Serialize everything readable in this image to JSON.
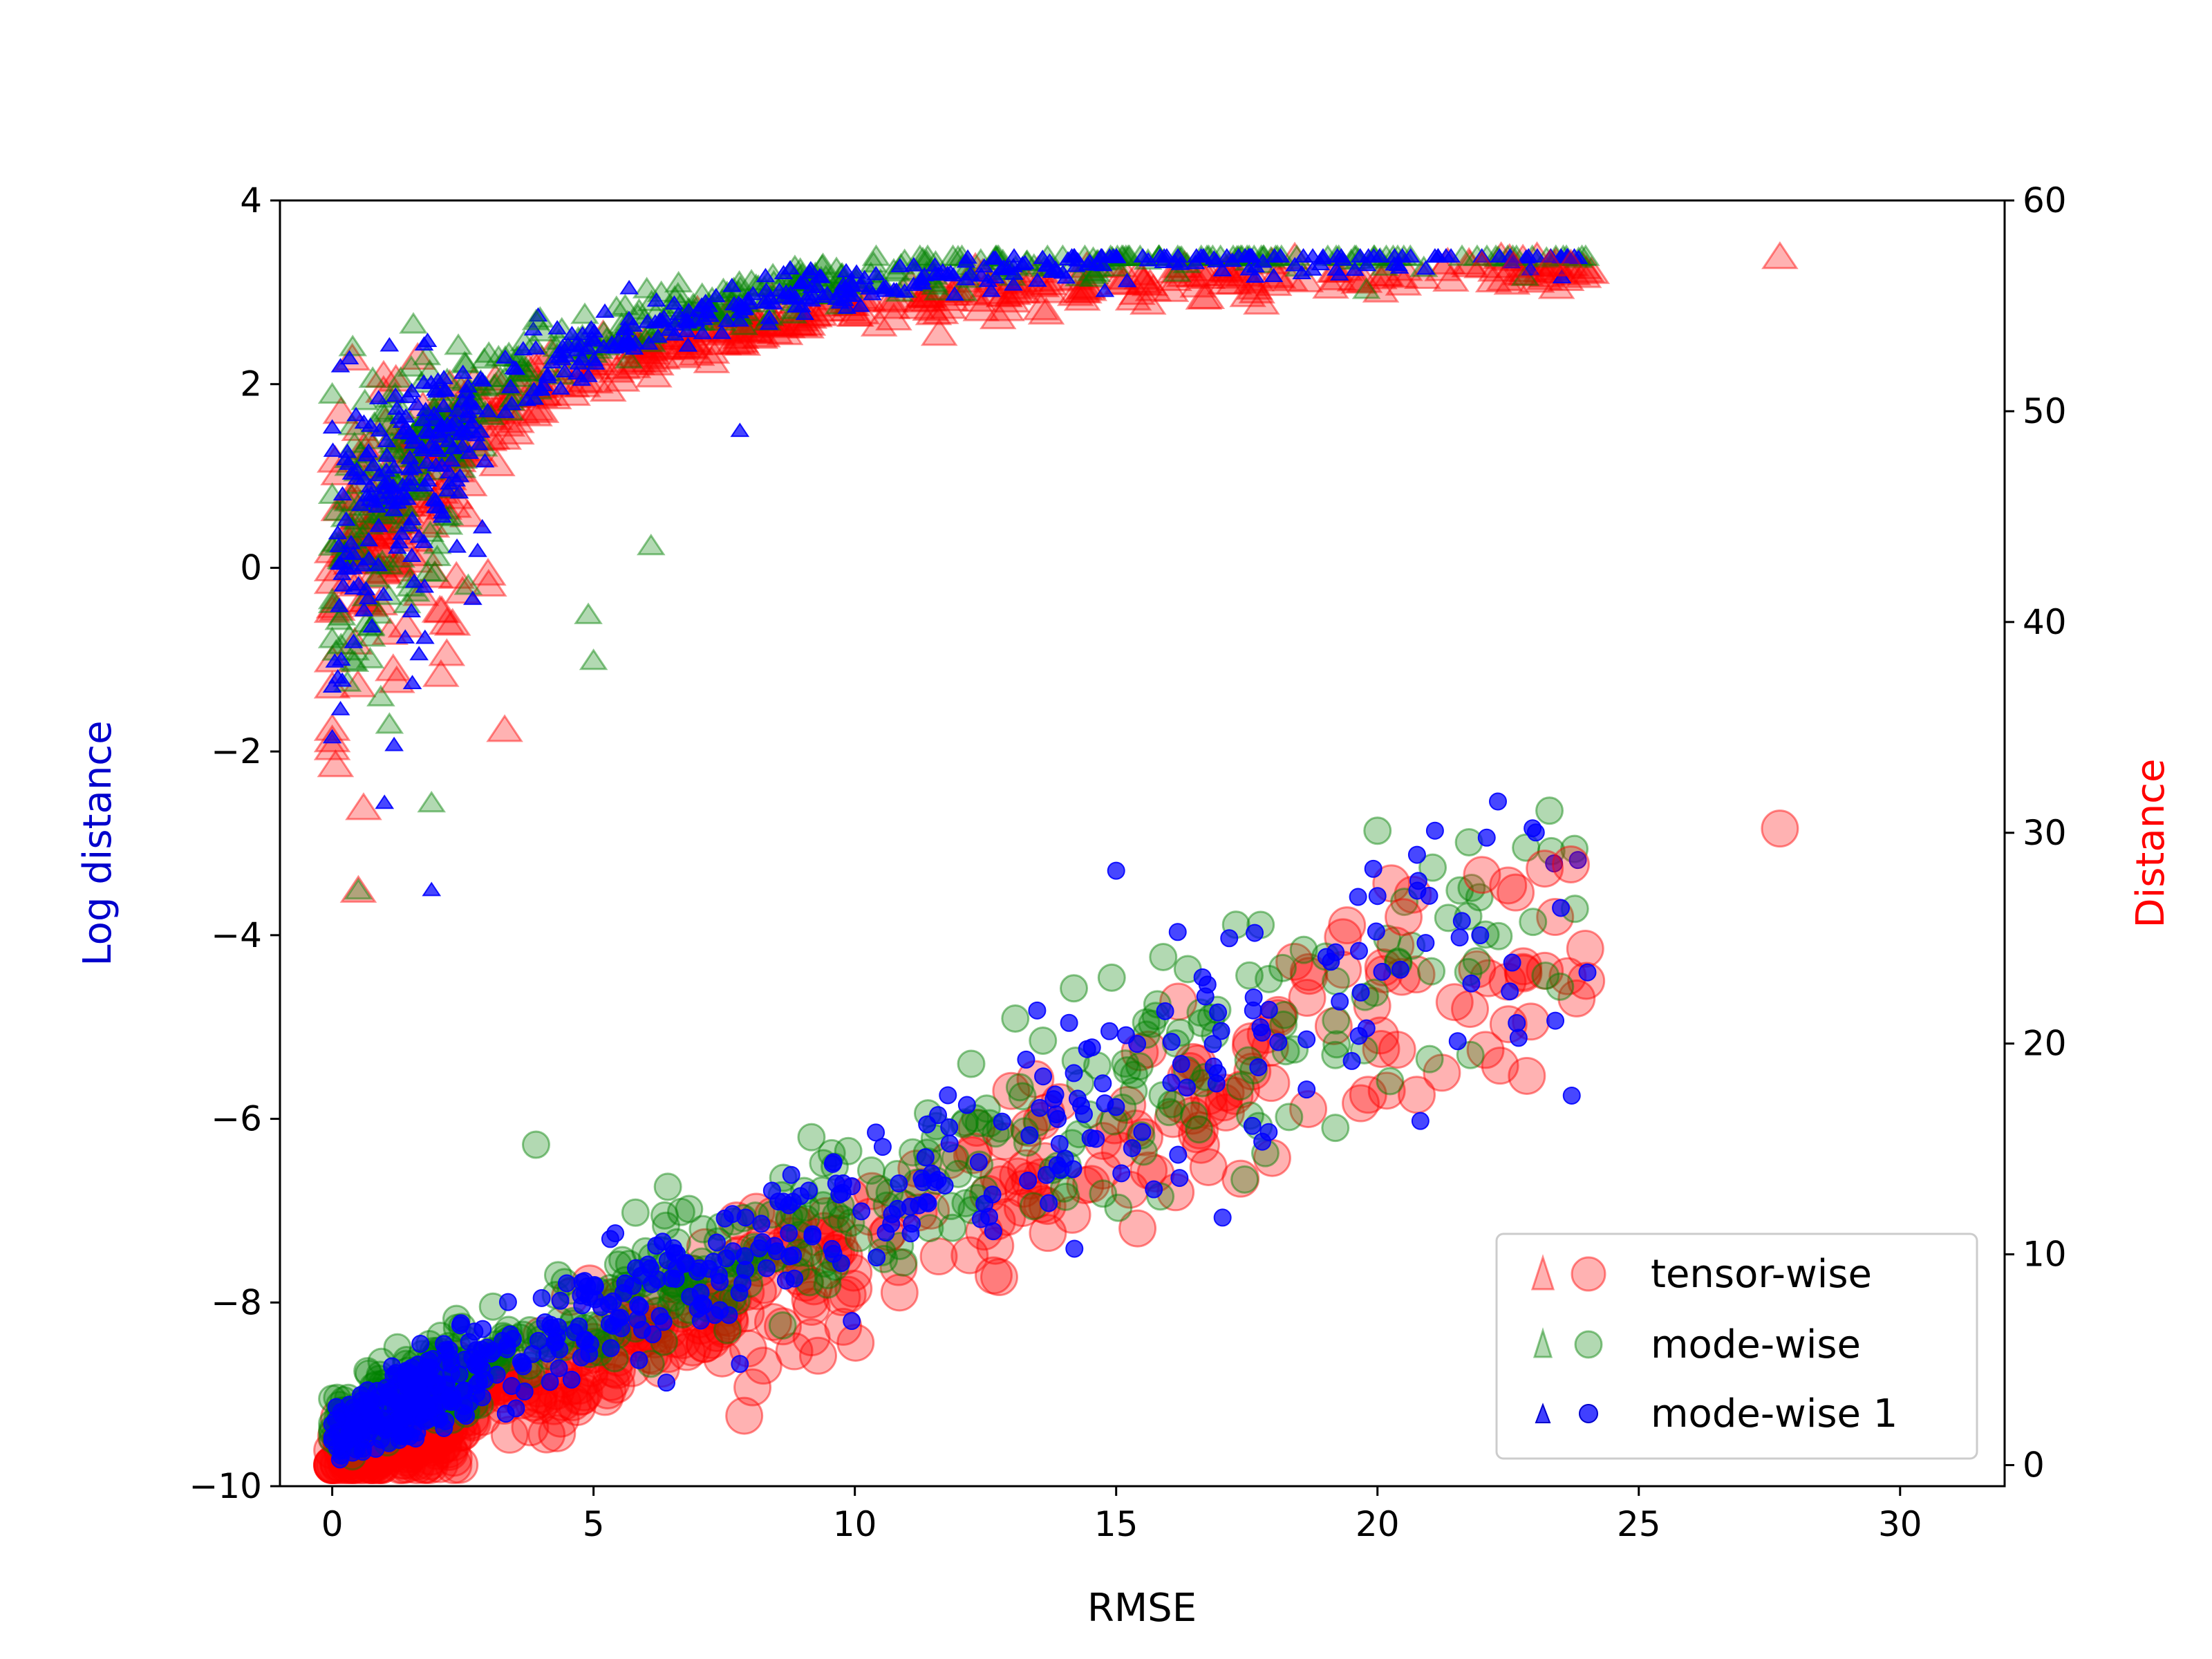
{
  "chart_data": {
    "type": "scatter",
    "title": "",
    "xlabel": "RMSE",
    "ylabel_left": "Log distance",
    "ylabel_right": "Distance",
    "xlim": [
      -1,
      32
    ],
    "ylim_left": [
      -10,
      4
    ],
    "ylim_right": [
      -1,
      60
    ],
    "xticks": [
      0,
      5,
      10,
      15,
      20,
      25,
      30
    ],
    "yticks_left": [
      4,
      2,
      0,
      -2,
      -4,
      -6,
      -8,
      -10
    ],
    "yticks_right": [
      60,
      50,
      40,
      30,
      20,
      10,
      0
    ],
    "ytick_labels_left": [
      "4",
      "2",
      "0",
      "−2",
      "−4",
      "−6",
      "−8",
      "−10"
    ],
    "grid": false,
    "legend_position": "lower-right",
    "colors": {
      "tensor_wise": "#ff0000",
      "mode_wise": "#008000",
      "mode_wise_1": "#0000ff",
      "left_label": "#0000cc",
      "right_label": "#ff0000"
    },
    "series": [
      {
        "name": "tensor-wise",
        "color": "#ff0000",
        "marker_log": "triangle",
        "marker_distance": "circle",
        "size": "large",
        "alpha": 0.3,
        "count_approx": 500
      },
      {
        "name": "mode-wise",
        "color": "#008000",
        "marker_log": "triangle",
        "marker_distance": "circle",
        "size": "medium",
        "alpha": 0.3,
        "count_approx": 500
      },
      {
        "name": "mode-wise 1",
        "color": "#0000ff",
        "marker_log": "triangle",
        "marker_distance": "circle",
        "size": "small",
        "alpha": 0.7,
        "count_approx": 500
      }
    ],
    "log_distance_trend": {
      "description": "log distance rises steeply near RMSE 0 then saturates toward ~3.4",
      "points": [
        [
          0,
          -0.5
        ],
        [
          0.5,
          0.8
        ],
        [
          1,
          1.2
        ],
        [
          2,
          1.5
        ],
        [
          3,
          1.8
        ],
        [
          5,
          2.1
        ],
        [
          8,
          2.5
        ],
        [
          10,
          2.7
        ],
        [
          15,
          3.0
        ],
        [
          20,
          3.2
        ],
        [
          22,
          3.3
        ],
        [
          23.7,
          3.35
        ],
        [
          27.7,
          3.4
        ]
      ],
      "low_outliers": [
        [
          0.5,
          -3.5
        ],
        [
          0.6,
          -2.6
        ],
        [
          1.0,
          -2.5
        ],
        [
          1.9,
          -2.5
        ],
        [
          1.9,
          -3.5
        ],
        [
          3.3,
          -1.75
        ],
        [
          5.0,
          -1.0
        ],
        [
          4.9,
          -0.5
        ],
        [
          6.1,
          0.25
        ]
      ]
    },
    "distance_trend": {
      "description": "distance grows roughly linearly with RMSE",
      "points": [
        [
          0,
          1
        ],
        [
          2,
          2.5
        ],
        [
          5,
          6
        ],
        [
          8,
          10
        ],
        [
          10,
          13
        ],
        [
          12,
          15
        ],
        [
          15,
          19
        ],
        [
          18,
          22
        ],
        [
          20,
          24
        ],
        [
          22,
          27
        ],
        [
          23.7,
          28.5
        ],
        [
          27.7,
          30.2
        ]
      ]
    }
  }
}
